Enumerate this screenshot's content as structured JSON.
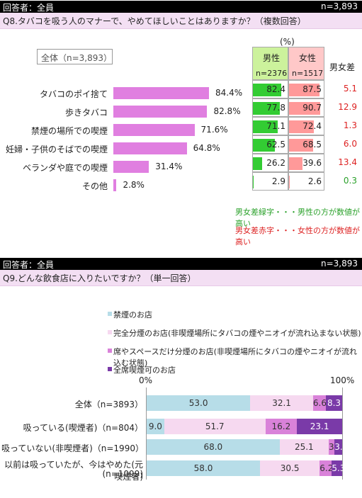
{
  "section1": {
    "respondent": "回答者：全員",
    "n_label": "n=3,893",
    "question": "Q8.タバコを吸う人のマナーで、やめてほしいことはありますか？（複数回答）",
    "total_label": "全体（n=3,893）",
    "unit": "(%)",
    "col_male": "男性",
    "col_male_n": "n=2376",
    "col_female": "女性",
    "col_female_n": "n=1517",
    "col_diff": "男女差",
    "note_green": "男女差緑字・・・男性の方が数値が高い",
    "note_red": "男女差赤字・・・女性の方が数値が高い",
    "colors": {
      "bar": "#e07fe0",
      "male_bar": "#33cc33",
      "female_bar": "#ff9999",
      "male_head": "#ccf29c",
      "female_head": "#ffc8c8",
      "green_text": "#2aa12a",
      "red_text": "#dd2222"
    }
  },
  "chart_data": [
    {
      "type": "bar",
      "orientation": "horizontal",
      "categories": [
        "タバコのポイ捨て",
        "歩きタバコ",
        "禁煙の場所での喫煙",
        "妊婦・子供のそばでの喫煙",
        "ベランダや庭での喫煙",
        "その他"
      ],
      "values": [
        84.4,
        82.8,
        71.6,
        64.8,
        31.4,
        2.8
      ],
      "value_labels": [
        "84.4%",
        "82.8%",
        "71.6%",
        "64.8%",
        "31.4%",
        "2.8%"
      ],
      "table": {
        "male": [
          "82.4",
          "77.8",
          "71.1",
          "62.5",
          "26.2",
          "2.9"
        ],
        "female": [
          "87.5",
          "90.7",
          "72.4",
          "68.5",
          "39.6",
          "2.6"
        ],
        "diff": [
          "5.1",
          "12.9",
          "1.3",
          "6.0",
          "13.4",
          "0.3"
        ],
        "diff_color": [
          "red",
          "red",
          "red",
          "red",
          "red",
          "green"
        ]
      }
    },
    {
      "type": "bar",
      "orientation": "horizontal",
      "stacked": true,
      "axis_min_label": "0%",
      "axis_max_label": "100%",
      "categories": [
        "全体（n=3893）",
        "吸っている(喫煙者)（n=804）",
        "吸っていない(非喫煙者)（n=1990）",
        "以前は吸っていたが、今はやめた(元喫煙者)"
      ],
      "category_sub": [
        "",
        "",
        "",
        "(n=1099)"
      ],
      "series": [
        {
          "name": "禁煙のお店",
          "color": "#b7dde8",
          "values": [
            53.0,
            9.0,
            68.0,
            58.0
          ],
          "labels": [
            "53.0",
            "9.0",
            "68.0",
            "58.0"
          ]
        },
        {
          "name": "完全分煙のお店(非喫煙場所にタバコの煙やニオイが流れ込まない状態)",
          "color": "#f6d9f0",
          "values": [
            32.1,
            51.7,
            25.1,
            30.5
          ],
          "labels": [
            "32.1",
            "51.7",
            "25.1",
            "30.5"
          ]
        },
        {
          "name": "席やスペースだけ分煙のお店(非喫煙場所にタバコの煙やニオイが流れ込む状態)",
          "color": "#d982d9",
          "values": [
            6.6,
            16.2,
            3.0,
            6.2
          ],
          "labels": [
            "6.6",
            "16.2",
            "3.",
            "6.2"
          ]
        },
        {
          "name": "全席喫煙可のお店",
          "color": "#7a3aa8",
          "values": [
            8.3,
            23.1,
            3.9,
            5.3
          ],
          "labels": [
            "8.3",
            "23.1",
            "3.9",
            "5.3"
          ]
        }
      ]
    }
  ],
  "section2": {
    "respondent": "回答者：全員",
    "n_label": "n=3,893",
    "question": "Q9.どんな飲食店に入りたいですか？（単一回答）"
  }
}
